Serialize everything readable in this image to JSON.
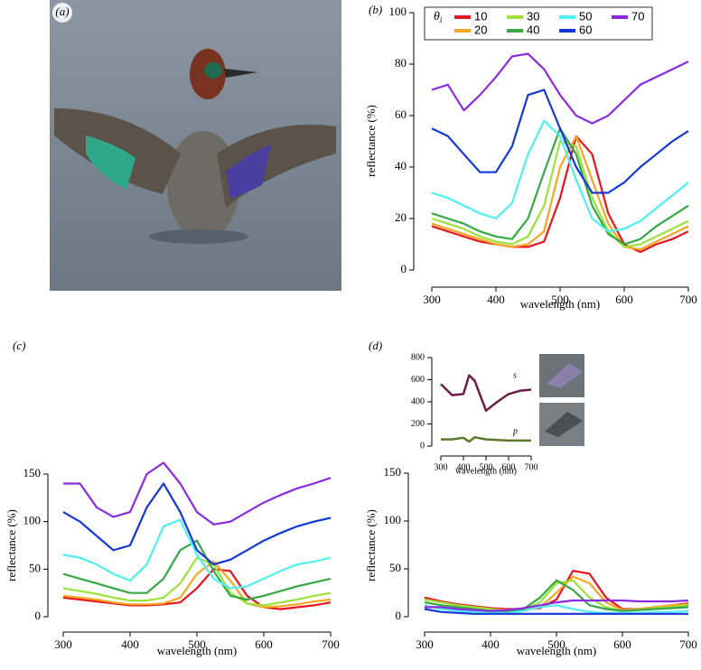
{
  "chart_data": [
    {
      "type": "image",
      "panel_label": "(a)"
    },
    {
      "type": "line",
      "panel_label": "(b)",
      "xlabel": "wavelength (nm)",
      "ylabel": "reflectance (%)",
      "legend_title": {
        "symbol": "θ",
        "subscript": "i"
      },
      "x": [
        300,
        325,
        350,
        375,
        400,
        425,
        450,
        475,
        500,
        525,
        550,
        575,
        600,
        625,
        650,
        675,
        700
      ],
      "xlim": [
        300,
        700
      ],
      "xticks": [
        300,
        400,
        500,
        600,
        700
      ],
      "ylim": [
        0,
        100
      ],
      "yticks": [
        0,
        20,
        40,
        60,
        80,
        100
      ],
      "series": [
        {
          "name": "10",
          "color": "#e8141e",
          "values": [
            17,
            15,
            13,
            11,
            10,
            9,
            9,
            11,
            28,
            52,
            45,
            22,
            10,
            7,
            10,
            12,
            15
          ]
        },
        {
          "name": "20",
          "color": "#f5a623",
          "values": [
            18,
            16,
            14,
            12,
            10,
            9,
            10,
            15,
            40,
            52,
            35,
            18,
            9,
            8,
            11,
            14,
            17
          ]
        },
        {
          "name": "30",
          "color": "#9be33a",
          "values": [
            20,
            18,
            16,
            13,
            11,
            10,
            13,
            25,
            50,
            48,
            28,
            15,
            9,
            10,
            13,
            16,
            19
          ]
        },
        {
          "name": "40",
          "color": "#35a843",
          "values": [
            22,
            20,
            18,
            15,
            13,
            12,
            20,
            38,
            55,
            45,
            25,
            14,
            10,
            12,
            17,
            21,
            25
          ]
        },
        {
          "name": "50",
          "color": "#4ef0f0",
          "values": [
            30,
            28,
            25,
            22,
            20,
            26,
            45,
            58,
            52,
            35,
            20,
            15,
            16,
            19,
            24,
            29,
            34
          ]
        },
        {
          "name": "60",
          "color": "#1438d8",
          "values": [
            55,
            52,
            45,
            38,
            38,
            48,
            68,
            70,
            55,
            40,
            30,
            30,
            34,
            40,
            45,
            50,
            54
          ]
        },
        {
          "name": "70",
          "color": "#8a2be2",
          "values": [
            70,
            72,
            62,
            68,
            75,
            83,
            84,
            78,
            68,
            60,
            57,
            60,
            66,
            72,
            75,
            78,
            81
          ]
        }
      ]
    },
    {
      "type": "line",
      "panel_label": "(c)",
      "xlabel": "wavelength (nm)",
      "ylabel": "reflectance (%)",
      "x": [
        300,
        325,
        350,
        375,
        400,
        425,
        450,
        475,
        500,
        525,
        550,
        575,
        600,
        625,
        650,
        675,
        700
      ],
      "xlim": [
        300,
        700
      ],
      "xticks": [
        300,
        400,
        500,
        600,
        700
      ],
      "ylim": [
        0,
        150
      ],
      "yticks": [
        0,
        50,
        100,
        150
      ],
      "series": [
        {
          "color": "#e8141e",
          "values": [
            20,
            18,
            16,
            14,
            12,
            12,
            13,
            15,
            30,
            50,
            48,
            22,
            10,
            8,
            10,
            12,
            15
          ]
        },
        {
          "color": "#f5a623",
          "values": [
            22,
            20,
            18,
            15,
            13,
            13,
            14,
            20,
            45,
            58,
            38,
            14,
            10,
            11,
            13,
            16,
            18
          ]
        },
        {
          "color": "#9be33a",
          "values": [
            30,
            27,
            24,
            20,
            17,
            17,
            20,
            35,
            62,
            55,
            25,
            14,
            12,
            15,
            18,
            22,
            25
          ]
        },
        {
          "color": "#35a843",
          "values": [
            45,
            40,
            35,
            30,
            25,
            25,
            40,
            70,
            80,
            48,
            22,
            18,
            22,
            27,
            32,
            36,
            40
          ]
        },
        {
          "color": "#4ef0f0",
          "values": [
            65,
            62,
            55,
            45,
            38,
            55,
            95,
            102,
            65,
            40,
            30,
            32,
            40,
            48,
            55,
            58,
            62
          ]
        },
        {
          "color": "#1438d8",
          "values": [
            110,
            100,
            85,
            70,
            75,
            115,
            140,
            110,
            70,
            55,
            60,
            70,
            80,
            88,
            95,
            100,
            104
          ]
        },
        {
          "color": "#8a2be2",
          "values": [
            140,
            140,
            115,
            105,
            110,
            150,
            162,
            140,
            110,
            97,
            100,
            110,
            120,
            128,
            135,
            140,
            146
          ]
        }
      ]
    },
    {
      "type": "line",
      "panel_label": "(d)",
      "xlabel": "wavelength (nm)",
      "ylabel": "reflectance (%)",
      "x": [
        300,
        325,
        350,
        375,
        400,
        425,
        450,
        475,
        500,
        525,
        550,
        575,
        600,
        625,
        650,
        675,
        700
      ],
      "xlim": [
        300,
        700
      ],
      "xticks": [
        300,
        400,
        500,
        600,
        700
      ],
      "ylim": [
        0,
        150
      ],
      "yticks": [
        0,
        50,
        100,
        150
      ],
      "series": [
        {
          "color": "#e8141e",
          "values": [
            20,
            16,
            13,
            11,
            9,
            8,
            8,
            9,
            18,
            48,
            45,
            20,
            8,
            8,
            10,
            12,
            14
          ]
        },
        {
          "color": "#f5a623",
          "values": [
            18,
            15,
            12,
            10,
            8,
            7,
            7,
            10,
            25,
            42,
            35,
            15,
            7,
            8,
            10,
            12,
            13
          ]
        },
        {
          "color": "#9be33a",
          "values": [
            18,
            15,
            12,
            10,
            8,
            6,
            7,
            15,
            35,
            38,
            20,
            10,
            6,
            7,
            9,
            10,
            12
          ]
        },
        {
          "color": "#35a843",
          "values": [
            15,
            12,
            10,
            8,
            6,
            5,
            8,
            20,
            38,
            28,
            12,
            8,
            6,
            7,
            8,
            9,
            10
          ]
        },
        {
          "color": "#4ef0f0",
          "values": [
            12,
            8,
            6,
            5,
            4,
            4,
            6,
            10,
            12,
            8,
            5,
            4,
            4,
            4,
            5,
            5,
            6
          ]
        },
        {
          "color": "#1438d8",
          "values": [
            8,
            5,
            4,
            3,
            3,
            3,
            3,
            3,
            3,
            3,
            3,
            3,
            3,
            3,
            3,
            3,
            3
          ]
        },
        {
          "color": "#8a2be2",
          "values": [
            10,
            10,
            8,
            7,
            6,
            7,
            9,
            12,
            15,
            17,
            17,
            17,
            17,
            16,
            16,
            16,
            17
          ]
        }
      ]
    },
    {
      "type": "line",
      "xlabel": "wavelength (nm)",
      "x": [
        300,
        350,
        400,
        425,
        450,
        500,
        550,
        600,
        650,
        700
      ],
      "xlim": [
        300,
        700
      ],
      "xticks": [
        300,
        400,
        500,
        600,
        700
      ],
      "ylim": [
        0,
        800
      ],
      "yticks": [
        0,
        200,
        400,
        600,
        800
      ],
      "series": [
        {
          "name": "s",
          "color": "#6b1f46",
          "values": [
            560,
            460,
            470,
            640,
            590,
            320,
            400,
            470,
            500,
            510
          ]
        },
        {
          "name": "p",
          "color": "#5a7a2a",
          "values": [
            60,
            60,
            75,
            40,
            80,
            60,
            55,
            50,
            50,
            50
          ]
        }
      ]
    }
  ]
}
